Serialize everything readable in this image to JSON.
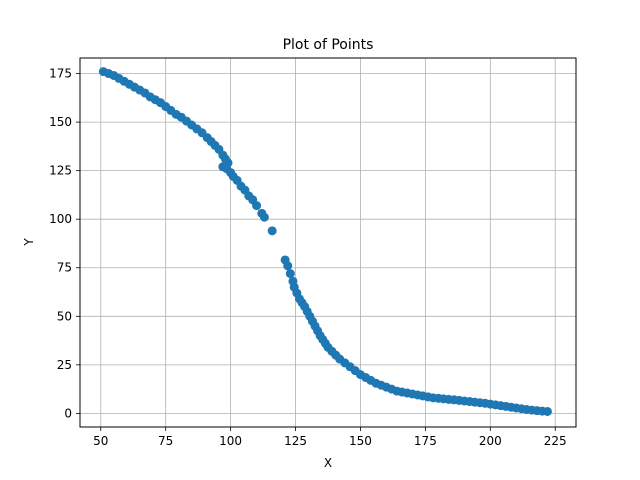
{
  "chart_data": {
    "type": "scatter",
    "title": "Plot of Points",
    "xlabel": "X",
    "ylabel": "Y",
    "xlim": [
      42,
      233
    ],
    "ylim": [
      -7,
      183
    ],
    "xticks": [
      50,
      75,
      100,
      125,
      150,
      175,
      200,
      225
    ],
    "yticks": [
      0,
      25,
      50,
      75,
      100,
      125,
      150,
      175
    ],
    "grid": true,
    "marker_color": "#1f77b4",
    "points": [
      [
        51,
        176
      ],
      [
        53,
        175
      ],
      [
        55,
        174
      ],
      [
        57,
        172.5
      ],
      [
        59,
        171
      ],
      [
        61,
        169.5
      ],
      [
        63,
        168
      ],
      [
        65,
        166.5
      ],
      [
        67,
        165
      ],
      [
        69,
        163
      ],
      [
        71,
        161.5
      ],
      [
        73,
        160
      ],
      [
        75,
        158
      ],
      [
        77,
        156
      ],
      [
        79,
        154
      ],
      [
        81,
        152.5
      ],
      [
        83,
        150.5
      ],
      [
        85,
        148.5
      ],
      [
        87,
        146.5
      ],
      [
        89,
        144.5
      ],
      [
        91,
        142
      ],
      [
        92.5,
        140
      ],
      [
        94,
        138
      ],
      [
        95.5,
        136
      ],
      [
        97,
        133
      ],
      [
        98,
        131
      ],
      [
        99,
        129
      ],
      [
        97,
        127
      ],
      [
        98.5,
        126
      ],
      [
        100,
        124
      ],
      [
        101,
        122
      ],
      [
        102.5,
        120
      ],
      [
        104,
        117
      ],
      [
        105.5,
        115
      ],
      [
        107,
        112
      ],
      [
        108.5,
        110
      ],
      [
        110,
        107
      ],
      [
        112,
        103
      ],
      [
        113,
        101
      ],
      [
        116,
        94
      ],
      [
        121,
        79
      ],
      [
        122,
        76
      ],
      [
        123,
        72
      ],
      [
        124,
        68
      ],
      [
        124.5,
        65
      ],
      [
        125.5,
        62
      ],
      [
        126.5,
        59
      ],
      [
        127.5,
        57
      ],
      [
        128.5,
        55
      ],
      [
        129.5,
        52.5
      ],
      [
        130.5,
        50
      ],
      [
        131.5,
        47.5
      ],
      [
        132.5,
        45
      ],
      [
        133.5,
        42.5
      ],
      [
        134.5,
        40
      ],
      [
        135.5,
        38
      ],
      [
        136.5,
        36
      ],
      [
        137.5,
        34
      ],
      [
        139,
        32
      ],
      [
        140.5,
        30
      ],
      [
        142,
        28
      ],
      [
        144,
        26
      ],
      [
        146,
        24
      ],
      [
        148,
        22
      ],
      [
        150,
        20
      ],
      [
        152,
        18.5
      ],
      [
        154,
        17
      ],
      [
        156,
        15.5
      ],
      [
        158,
        14.5
      ],
      [
        160,
        13.5
      ],
      [
        162,
        12.5
      ],
      [
        164,
        11.5
      ],
      [
        166,
        11
      ],
      [
        168,
        10.5
      ],
      [
        170,
        10
      ],
      [
        172,
        9.5
      ],
      [
        174,
        9
      ],
      [
        176,
        8.5
      ],
      [
        178,
        8
      ],
      [
        180,
        7.8
      ],
      [
        182,
        7.5
      ],
      [
        184,
        7.2
      ],
      [
        186,
        7
      ],
      [
        188,
        6.7
      ],
      [
        190,
        6.4
      ],
      [
        192,
        6.1
      ],
      [
        194,
        5.8
      ],
      [
        196,
        5.5
      ],
      [
        198,
        5.2
      ],
      [
        200,
        4.8
      ],
      [
        202,
        4.4
      ],
      [
        204,
        4
      ],
      [
        206,
        3.6
      ],
      [
        208,
        3.2
      ],
      [
        210,
        2.8
      ],
      [
        212,
        2.4
      ],
      [
        214,
        2
      ],
      [
        216,
        1.7
      ],
      [
        218,
        1.4
      ],
      [
        220,
        1.2
      ],
      [
        222,
        1
      ]
    ]
  }
}
